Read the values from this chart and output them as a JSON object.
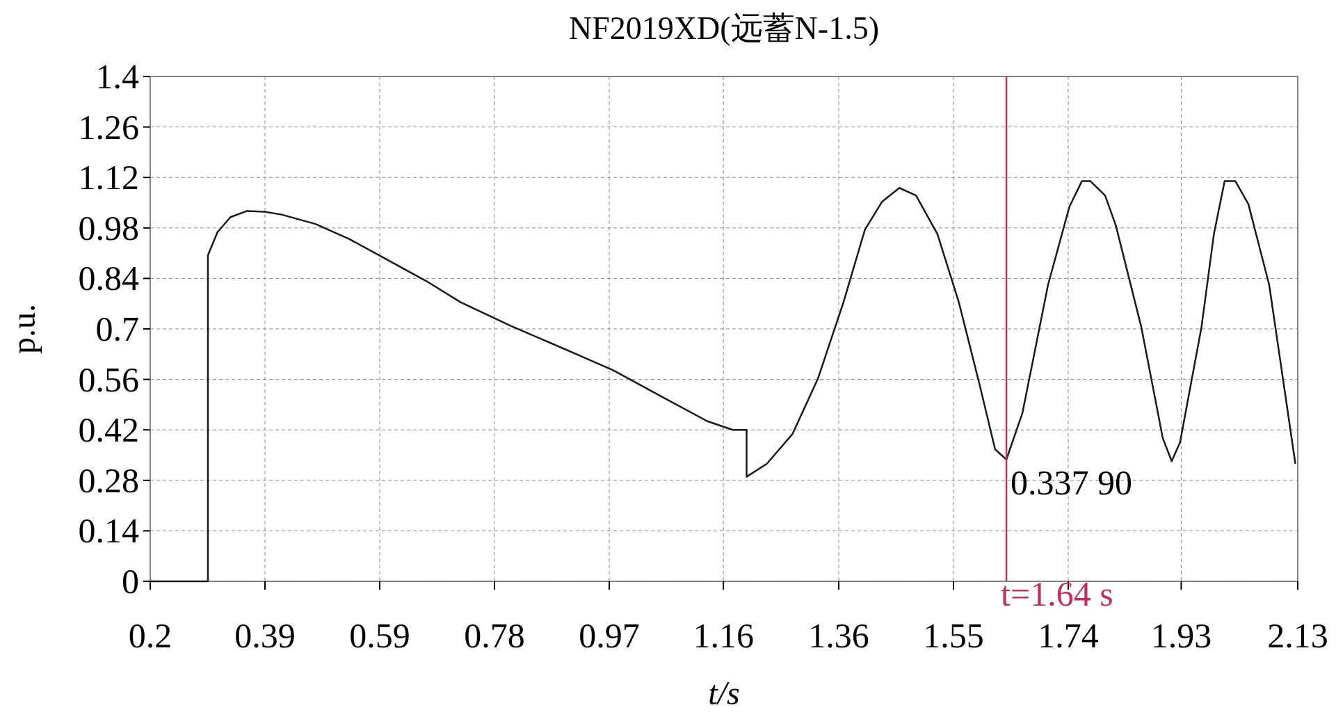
{
  "chart_data": {
    "type": "line",
    "title": "NF2019XD(远蓄N-1.5)",
    "xlabel": "t/s",
    "ylabel": "p.u.",
    "xlim": [
      0.2,
      2.13
    ],
    "xticks": [
      0.2,
      {
        "value": 0.393,
        "label": "0.39"
      },
      {
        "value": 0.586,
        "label": "0.59"
      },
      {
        "value": 0.779,
        "label": "0.78"
      },
      {
        "value": 0.972,
        "label": "0.97"
      },
      {
        "value": 1.164,
        "label": "1.16"
      },
      {
        "value": 1.358,
        "label": "1.36"
      },
      {
        "value": 1.551,
        "label": "1.55"
      },
      {
        "value": 1.744,
        "label": "1.74"
      },
      {
        "value": 1.934,
        "label": "1.93"
      },
      2.13
    ],
    "ylim": [
      0,
      1.4
    ],
    "yticks": [
      0,
      0.14,
      0.28,
      0.42,
      0.56,
      0.7,
      0.84,
      0.98,
      1.12,
      1.26,
      1.4
    ],
    "grid": true,
    "series": [
      {
        "color": "#1a1a1a",
        "x": [
          0.2,
          0.297,
          0.297,
          0.313,
          0.335,
          0.363,
          0.392,
          0.421,
          0.478,
          0.535,
          0.593,
          0.664,
          0.722,
          0.807,
          0.893,
          0.979,
          1.065,
          1.137,
          1.18,
          1.203,
          1.203,
          1.237,
          1.28,
          1.323,
          1.366,
          1.402,
          1.431,
          1.46,
          1.488,
          1.524,
          1.56,
          1.596,
          1.621,
          1.64,
          1.667,
          1.71,
          1.746,
          1.767,
          1.781,
          1.806,
          1.824,
          1.867,
          1.903,
          1.918,
          1.932,
          1.968,
          1.989,
          2.007,
          2.025,
          2.047,
          2.082,
          2.126
        ],
        "values": [
          0,
          0,
          0.904,
          0.968,
          1.01,
          1.027,
          1.025,
          1.017,
          0.991,
          0.949,
          0.897,
          0.833,
          0.774,
          0.708,
          0.647,
          0.585,
          0.508,
          0.444,
          0.42,
          0.42,
          0.29,
          0.326,
          0.408,
          0.562,
          0.774,
          0.975,
          1.053,
          1.091,
          1.07,
          0.963,
          0.774,
          0.538,
          0.366,
          0.338,
          0.467,
          0.822,
          1.039,
          1.11,
          1.11,
          1.07,
          0.987,
          0.704,
          0.397,
          0.333,
          0.385,
          0.704,
          0.963,
          1.11,
          1.11,
          1.046,
          0.822,
          0.326
        ]
      }
    ],
    "ref_lines": [
      {
        "axis": "x",
        "value": 1.64,
        "label": "t=1.64 s",
        "color": "#c0305a"
      }
    ],
    "annotations": [
      {
        "text": "0.337 90",
        "x": 1.64,
        "y": 0.3379
      }
    ]
  }
}
